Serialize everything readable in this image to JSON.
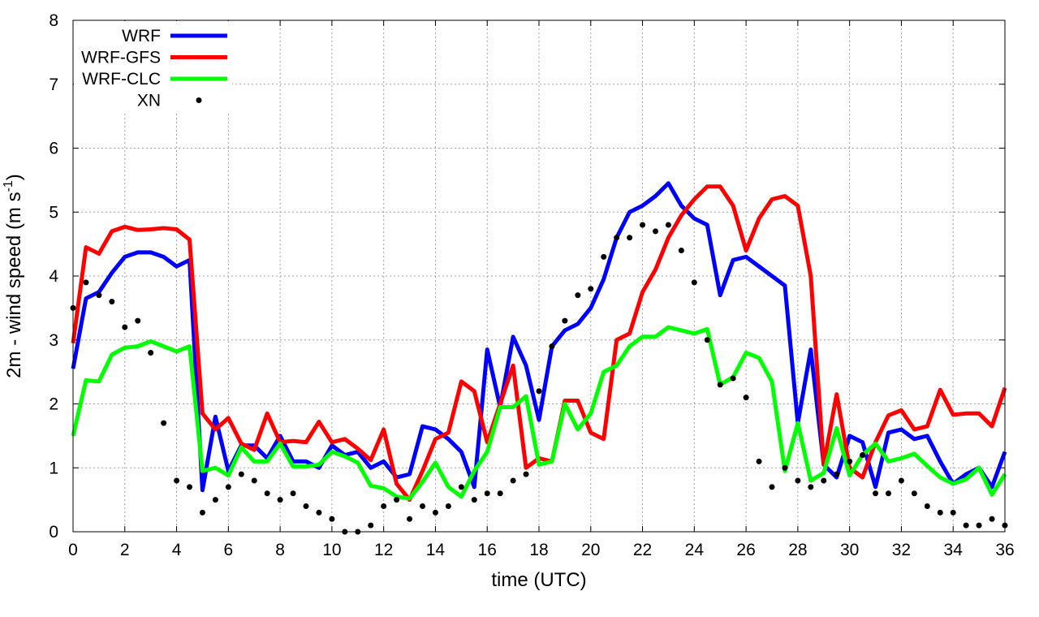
{
  "chart_data": {
    "type": "line",
    "xlabel": "time (UTC)",
    "ylabel": "2m - wind speed  (m s",
    "ylabel_sup": "-1",
    "ylabel_end": ")",
    "xlim": [
      0,
      36
    ],
    "ylim": [
      0,
      8
    ],
    "grid": true,
    "legend_position": "top-left",
    "x": [
      0,
      0.5,
      1,
      1.5,
      2,
      2.5,
      3,
      3.5,
      4,
      4.5,
      5,
      5.5,
      6,
      6.5,
      7,
      7.5,
      8,
      8.5,
      9,
      9.5,
      10,
      10.5,
      11,
      11.5,
      12,
      12.5,
      13,
      13.5,
      14,
      14.5,
      15,
      15.5,
      16,
      16.5,
      17,
      17.5,
      18,
      18.5,
      19,
      19.5,
      20,
      20.5,
      21,
      21.5,
      22,
      22.5,
      23,
      23.5,
      24,
      24.5,
      25,
      25.5,
      26,
      26.5,
      27,
      27.5,
      28,
      28.5,
      29,
      29.5,
      30,
      30.5,
      31,
      31.5,
      32,
      32.5,
      33,
      33.5,
      34,
      34.5,
      35,
      35.5,
      36
    ],
    "series": [
      {
        "name": "WRF",
        "color": "#0000ff",
        "style": "line",
        "values": [
          2.55,
          3.65,
          3.75,
          4.05,
          4.3,
          4.37,
          4.37,
          4.3,
          4.15,
          4.25,
          0.65,
          1.8,
          0.95,
          1.35,
          1.35,
          1.15,
          1.5,
          1.1,
          1.1,
          1.0,
          1.35,
          1.2,
          1.25,
          1.0,
          1.1,
          0.85,
          0.9,
          1.65,
          1.6,
          1.45,
          1.25,
          0.7,
          2.85,
          1.95,
          3.05,
          2.6,
          1.75,
          2.9,
          3.15,
          3.25,
          3.5,
          3.95,
          4.6,
          5.0,
          5.1,
          5.25,
          5.45,
          5.1,
          4.9,
          4.8,
          3.7,
          4.25,
          4.3,
          4.15,
          4.0,
          3.85,
          1.7,
          2.85,
          1.05,
          0.85,
          1.5,
          1.4,
          0.7,
          1.55,
          1.6,
          1.45,
          1.5,
          1.1,
          0.75,
          0.9,
          1.0,
          0.7,
          1.25
        ]
      },
      {
        "name": "WRF-GFS",
        "color": "#ff0000",
        "style": "line",
        "values": [
          2.95,
          4.45,
          4.35,
          4.7,
          4.77,
          4.72,
          4.73,
          4.75,
          4.73,
          4.57,
          1.85,
          1.6,
          1.78,
          1.38,
          1.28,
          1.85,
          1.4,
          1.42,
          1.4,
          1.72,
          1.4,
          1.45,
          1.3,
          1.12,
          1.6,
          0.75,
          0.5,
          0.95,
          1.45,
          1.55,
          2.35,
          2.2,
          1.4,
          2.0,
          2.6,
          1.0,
          1.15,
          1.1,
          2.05,
          2.05,
          1.55,
          1.45,
          3.0,
          3.1,
          3.75,
          4.1,
          4.6,
          4.95,
          5.2,
          5.4,
          5.4,
          5.1,
          4.4,
          4.9,
          5.2,
          5.25,
          5.1,
          4.0,
          1.05,
          2.15,
          1.0,
          0.85,
          1.4,
          1.82,
          1.9,
          1.6,
          1.65,
          2.22,
          1.83,
          1.85,
          1.85,
          1.65,
          2.25
        ]
      },
      {
        "name": "WRF-CLC",
        "color": "#00ff00",
        "style": "line",
        "values": [
          1.5,
          2.37,
          2.35,
          2.77,
          2.88,
          2.9,
          2.98,
          2.9,
          2.82,
          2.9,
          0.95,
          1.0,
          0.88,
          1.32,
          1.1,
          1.1,
          1.38,
          1.02,
          1.02,
          1.05,
          1.25,
          1.18,
          1.08,
          0.72,
          0.68,
          0.55,
          0.52,
          0.78,
          1.08,
          0.7,
          0.55,
          0.95,
          1.25,
          1.95,
          1.95,
          2.12,
          1.05,
          1.1,
          2.0,
          1.6,
          1.85,
          2.5,
          2.6,
          2.9,
          3.05,
          3.05,
          3.2,
          3.15,
          3.1,
          3.17,
          2.3,
          2.42,
          2.8,
          2.72,
          2.35,
          0.95,
          1.7,
          0.8,
          0.92,
          1.62,
          0.88,
          1.2,
          1.38,
          1.1,
          1.15,
          1.22,
          1.03,
          0.85,
          0.75,
          0.82,
          1.0,
          0.58,
          0.9
        ]
      },
      {
        "name": "XN",
        "color": "#000000",
        "style": "points",
        "values": [
          3.5,
          3.9,
          3.7,
          3.6,
          3.2,
          3.3,
          2.8,
          1.7,
          0.8,
          0.7,
          0.3,
          0.5,
          0.7,
          0.9,
          0.8,
          0.6,
          0.5,
          0.6,
          0.4,
          0.3,
          0.2,
          0.0,
          0.0,
          0.1,
          0.4,
          0.5,
          0.2,
          0.4,
          0.3,
          0.4,
          0.7,
          0.5,
          0.6,
          0.6,
          0.8,
          0.9,
          2.2,
          2.9,
          3.3,
          3.7,
          3.8,
          4.3,
          4.6,
          4.6,
          4.8,
          4.7,
          4.8,
          4.4,
          3.9,
          3.0,
          2.3,
          2.4,
          2.1,
          1.1,
          0.7,
          1.0,
          0.8,
          0.7,
          0.8,
          0.9,
          1.1,
          1.2,
          0.6,
          0.6,
          0.8,
          0.6,
          0.4,
          0.3,
          0.3,
          0.1,
          0.1,
          0.2,
          0.1
        ]
      }
    ]
  }
}
